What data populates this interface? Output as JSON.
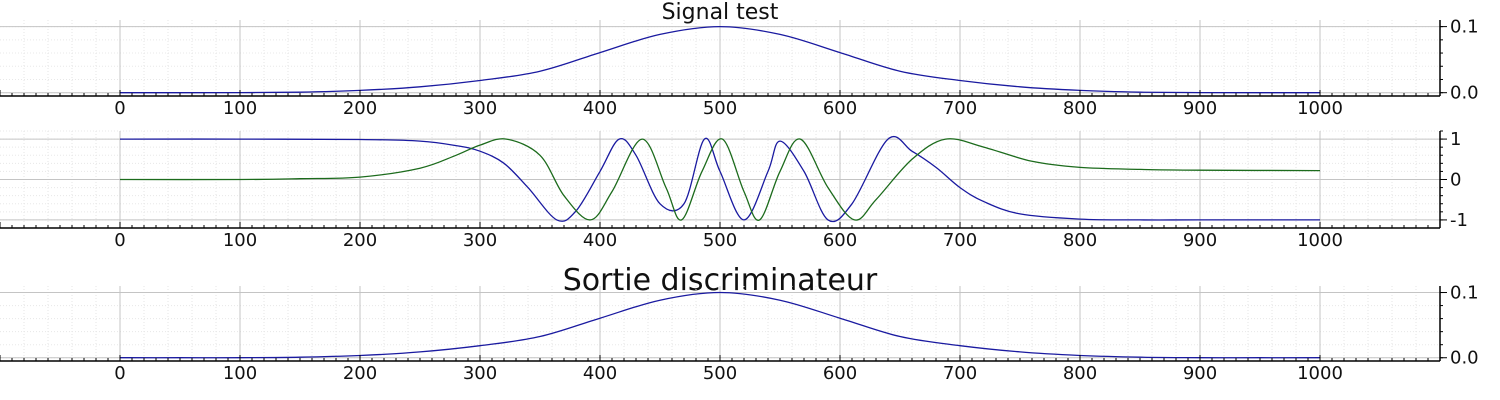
{
  "chart_data": [
    {
      "type": "line",
      "title": "Signal test",
      "xlabel": "",
      "ylabel": "",
      "xlim": [
        -100,
        1100
      ],
      "ylim": [
        -0.005,
        0.11
      ],
      "x_ticks": [
        0,
        100,
        200,
        300,
        400,
        500,
        600,
        700,
        800,
        900,
        1000
      ],
      "y_ticks": [
        0.0,
        0.1
      ],
      "y_tick_labels": [
        "0.0",
        "0.1"
      ],
      "grid": true,
      "y_axis_side": "right",
      "series": [
        {
          "color": "#1a1aa0",
          "x": [
            0,
            50,
            100,
            150,
            200,
            250,
            300,
            350,
            400,
            450,
            500,
            550,
            600,
            650,
            700,
            750,
            800,
            850,
            900,
            950,
            1000
          ],
          "y": [
            0.0,
            0.0,
            0.0001,
            0.0008,
            0.0035,
            0.0089,
            0.0185,
            0.0325,
            0.0607,
            0.0882,
            0.1,
            0.0882,
            0.0607,
            0.0325,
            0.0185,
            0.0089,
            0.0035,
            0.0008,
            0.0001,
            0.0,
            0.0
          ]
        }
      ]
    },
    {
      "type": "line",
      "title": "",
      "xlabel": "",
      "ylabel": "",
      "xlim": [
        -100,
        1100
      ],
      "ylim": [
        -1.2,
        1.2
      ],
      "x_ticks": [
        0,
        100,
        200,
        300,
        400,
        500,
        600,
        700,
        800,
        900,
        1000
      ],
      "y_ticks": [
        -1,
        0,
        1
      ],
      "y_tick_labels": [
        "-1",
        "0",
        "1"
      ],
      "grid": true,
      "y_axis_side": "right",
      "series": [
        {
          "color": "#1a1aa0",
          "x": [
            0,
            100,
            200,
            250,
            280,
            300,
            320,
            340,
            364,
            380,
            400,
            416,
            430,
            450,
            470,
            487,
            500,
            520,
            540,
            550,
            570,
            590,
            610,
            640,
            660,
            680,
            700,
            720,
            750,
            800,
            850,
            900,
            1000
          ],
          "y": [
            1.0,
            1.0,
            0.99,
            0.95,
            0.84,
            0.7,
            0.4,
            -0.2,
            -1.0,
            -0.78,
            0.2,
            1.0,
            0.6,
            -0.6,
            -0.6,
            1.0,
            0.2,
            -1.0,
            0.2,
            0.95,
            0.2,
            -1.0,
            -0.6,
            1.0,
            0.7,
            0.3,
            -0.2,
            -0.55,
            -0.85,
            -0.98,
            -1.0,
            -1.0,
            -1.0
          ]
        },
        {
          "color": "#1c6b1c",
          "x": [
            0,
            100,
            150,
            200,
            250,
            280,
            300,
            322,
            350,
            370,
            392,
            410,
            435,
            455,
            468,
            485,
            502,
            520,
            533,
            550,
            567,
            590,
            612,
            630,
            660,
            688,
            720,
            760,
            800,
            850,
            900,
            1000
          ],
          "y": [
            0.0,
            0.0,
            0.02,
            0.06,
            0.28,
            0.6,
            0.85,
            1.0,
            0.6,
            -0.4,
            -1.0,
            -0.3,
            1.0,
            -0.2,
            -1.0,
            0.2,
            1.0,
            -0.3,
            -1.0,
            0.2,
            1.0,
            -0.2,
            -1.0,
            -0.5,
            0.5,
            1.0,
            0.8,
            0.45,
            0.3,
            0.25,
            0.23,
            0.22
          ]
        }
      ]
    },
    {
      "type": "line",
      "title": "Sortie discriminateur",
      "xlabel": "",
      "ylabel": "",
      "xlim": [
        -100,
        1100
      ],
      "ylim": [
        -0.005,
        0.11
      ],
      "x_ticks": [
        0,
        100,
        200,
        300,
        400,
        500,
        600,
        700,
        800,
        900,
        1000
      ],
      "y_ticks": [
        0.0,
        0.1
      ],
      "y_tick_labels": [
        "0.0",
        "0.1"
      ],
      "grid": true,
      "y_axis_side": "right",
      "series": [
        {
          "color": "#1a1aa0",
          "x": [
            0,
            50,
            100,
            150,
            200,
            250,
            300,
            350,
            400,
            450,
            500,
            550,
            600,
            650,
            700,
            750,
            800,
            850,
            900,
            950,
            1000
          ],
          "y": [
            0.0,
            0.0,
            0.0001,
            0.0008,
            0.0035,
            0.0089,
            0.0185,
            0.0325,
            0.0607,
            0.0882,
            0.1,
            0.0882,
            0.0607,
            0.0325,
            0.0185,
            0.0089,
            0.0035,
            0.0008,
            0.0001,
            0.0,
            0.0
          ]
        }
      ]
    }
  ]
}
